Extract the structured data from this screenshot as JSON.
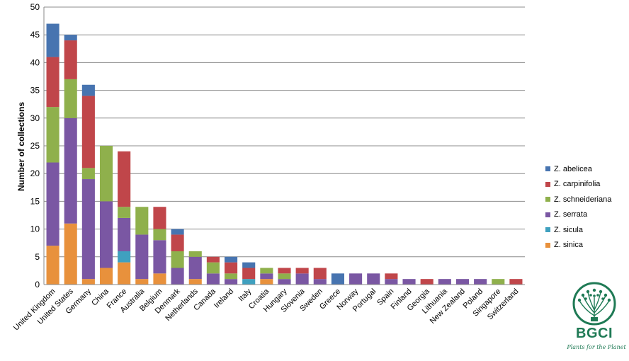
{
  "chart_data": {
    "type": "bar",
    "stacked": true,
    "ylabel": "Number of collections",
    "ylim": [
      0,
      50
    ],
    "yticks": [
      0,
      5,
      10,
      15,
      20,
      25,
      30,
      35,
      40,
      45,
      50
    ],
    "grid": true,
    "legend_position": "right",
    "categories": [
      "United Kingdom",
      "United States",
      "Germany",
      "China",
      "France",
      "Australia",
      "Belgium",
      "Denmark",
      "Netherlands",
      "Canada",
      "Ireland",
      "Italy",
      "Croatia",
      "Hungary",
      "Slovenia",
      "Sweden",
      "Greece",
      "Norway",
      "Portugal",
      "Spain",
      "Finland",
      "Georgia",
      "Lithuania",
      "New Zealand",
      "Poland",
      "Singapore",
      "Switzerland"
    ],
    "series": [
      {
        "name": "Z. sinica",
        "color": "#e8913c",
        "values": [
          7,
          11,
          1,
          3,
          4,
          1,
          2,
          0,
          1,
          0,
          0,
          0,
          1,
          0,
          0,
          0,
          0,
          0,
          0,
          0,
          0,
          0,
          0,
          0,
          0,
          0,
          0
        ]
      },
      {
        "name": "Z. sicula",
        "color": "#3fa0bf",
        "values": [
          0,
          0,
          0,
          0,
          2,
          0,
          0,
          0,
          0,
          0,
          0,
          1,
          0,
          0,
          0,
          0,
          0,
          0,
          0,
          0,
          0,
          0,
          0,
          0,
          0,
          0,
          0
        ]
      },
      {
        "name": "Z. serrata",
        "color": "#7a57a3",
        "values": [
          15,
          19,
          18,
          12,
          6,
          8,
          6,
          3,
          4,
          2,
          1,
          0,
          1,
          1,
          2,
          1,
          0,
          2,
          2,
          1,
          1,
          0,
          1,
          1,
          1,
          0,
          0
        ]
      },
      {
        "name": "Z. schneideriana",
        "color": "#8fb04c",
        "values": [
          10,
          7,
          2,
          10,
          2,
          5,
          2,
          3,
          1,
          2,
          1,
          0,
          1,
          1,
          0,
          0,
          0,
          0,
          0,
          0,
          0,
          0,
          0,
          0,
          0,
          1,
          0
        ]
      },
      {
        "name": "Z. carpinifolia",
        "color": "#c0464a",
        "values": [
          9,
          7,
          13,
          0,
          10,
          0,
          4,
          3,
          0,
          1,
          2,
          2,
          0,
          1,
          1,
          2,
          0,
          0,
          0,
          1,
          0,
          1,
          0,
          0,
          0,
          0,
          1
        ]
      },
      {
        "name": "Z. abelicea",
        "color": "#4774b0",
        "values": [
          6,
          1,
          2,
          0,
          0,
          0,
          0,
          1,
          0,
          0,
          1,
          1,
          0,
          0,
          0,
          0,
          2,
          0,
          0,
          0,
          0,
          0,
          0,
          0,
          0,
          0,
          0
        ]
      }
    ]
  },
  "legend": {
    "items": [
      {
        "label": "Z. abelicea",
        "color": "#4774b0"
      },
      {
        "label": "Z. carpinifolia",
        "color": "#c0464a"
      },
      {
        "label": "Z. schneideriana",
        "color": "#8fb04c"
      },
      {
        "label": "Z. serrata",
        "color": "#7a57a3"
      },
      {
        "label": "Z. sicula",
        "color": "#3fa0bf"
      },
      {
        "label": "Z. sinica",
        "color": "#e8913c"
      }
    ]
  },
  "logo": {
    "name": "BGCI",
    "tagline": "Plants for the Planet",
    "color": "#1f7a55"
  }
}
